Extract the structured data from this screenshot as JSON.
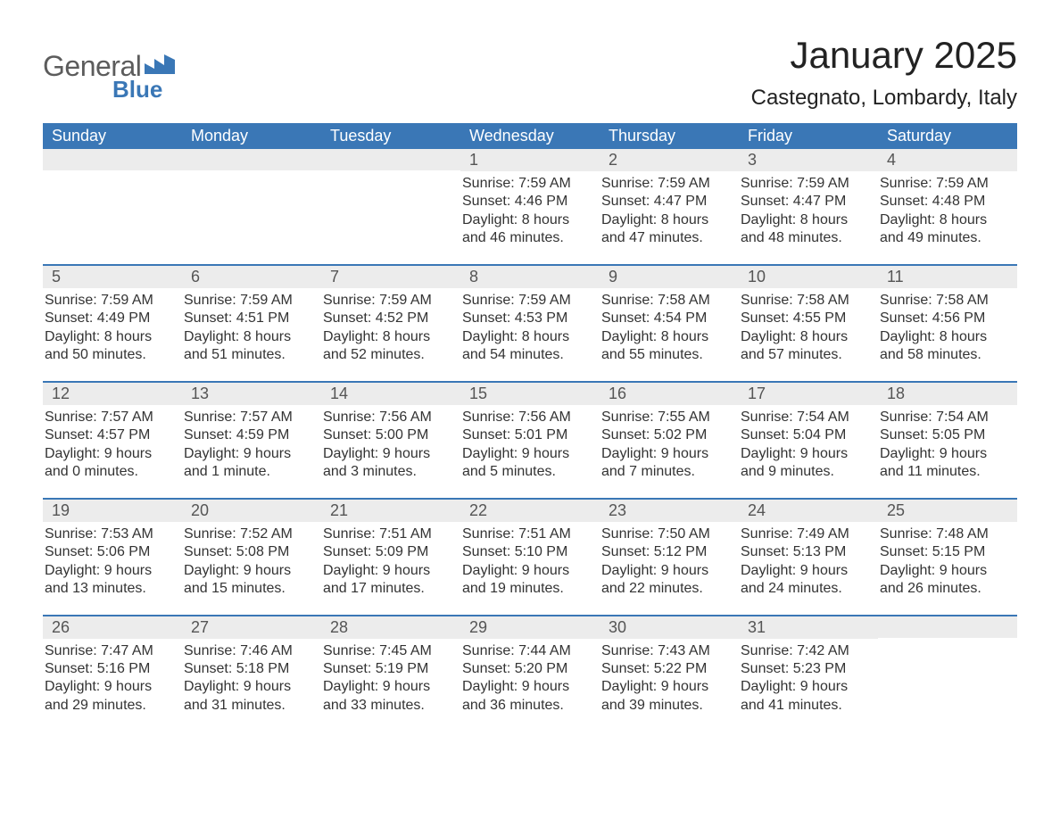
{
  "logo": {
    "text_general": "General",
    "text_blue": "Blue"
  },
  "title": "January 2025",
  "location": "Castegnato, Lombardy, Italy",
  "colors": {
    "brand_blue": "#3a77b6",
    "header_blue": "#3a77b6",
    "row_stripe": "#ececec",
    "text_dark": "#333333",
    "background": "#ffffff"
  },
  "weekdays": [
    "Sunday",
    "Monday",
    "Tuesday",
    "Wednesday",
    "Thursday",
    "Friday",
    "Saturday"
  ],
  "weeks": [
    [
      {
        "day": "",
        "sunrise": "",
        "sunset": "",
        "daylight1": "",
        "daylight2": ""
      },
      {
        "day": "",
        "sunrise": "",
        "sunset": "",
        "daylight1": "",
        "daylight2": ""
      },
      {
        "day": "",
        "sunrise": "",
        "sunset": "",
        "daylight1": "",
        "daylight2": ""
      },
      {
        "day": "1",
        "sunrise": "Sunrise: 7:59 AM",
        "sunset": "Sunset: 4:46 PM",
        "daylight1": "Daylight: 8 hours",
        "daylight2": "and 46 minutes."
      },
      {
        "day": "2",
        "sunrise": "Sunrise: 7:59 AM",
        "sunset": "Sunset: 4:47 PM",
        "daylight1": "Daylight: 8 hours",
        "daylight2": "and 47 minutes."
      },
      {
        "day": "3",
        "sunrise": "Sunrise: 7:59 AM",
        "sunset": "Sunset: 4:47 PM",
        "daylight1": "Daylight: 8 hours",
        "daylight2": "and 48 minutes."
      },
      {
        "day": "4",
        "sunrise": "Sunrise: 7:59 AM",
        "sunset": "Sunset: 4:48 PM",
        "daylight1": "Daylight: 8 hours",
        "daylight2": "and 49 minutes."
      }
    ],
    [
      {
        "day": "5",
        "sunrise": "Sunrise: 7:59 AM",
        "sunset": "Sunset: 4:49 PM",
        "daylight1": "Daylight: 8 hours",
        "daylight2": "and 50 minutes."
      },
      {
        "day": "6",
        "sunrise": "Sunrise: 7:59 AM",
        "sunset": "Sunset: 4:51 PM",
        "daylight1": "Daylight: 8 hours",
        "daylight2": "and 51 minutes."
      },
      {
        "day": "7",
        "sunrise": "Sunrise: 7:59 AM",
        "sunset": "Sunset: 4:52 PM",
        "daylight1": "Daylight: 8 hours",
        "daylight2": "and 52 minutes."
      },
      {
        "day": "8",
        "sunrise": "Sunrise: 7:59 AM",
        "sunset": "Sunset: 4:53 PM",
        "daylight1": "Daylight: 8 hours",
        "daylight2": "and 54 minutes."
      },
      {
        "day": "9",
        "sunrise": "Sunrise: 7:58 AM",
        "sunset": "Sunset: 4:54 PM",
        "daylight1": "Daylight: 8 hours",
        "daylight2": "and 55 minutes."
      },
      {
        "day": "10",
        "sunrise": "Sunrise: 7:58 AM",
        "sunset": "Sunset: 4:55 PM",
        "daylight1": "Daylight: 8 hours",
        "daylight2": "and 57 minutes."
      },
      {
        "day": "11",
        "sunrise": "Sunrise: 7:58 AM",
        "sunset": "Sunset: 4:56 PM",
        "daylight1": "Daylight: 8 hours",
        "daylight2": "and 58 minutes."
      }
    ],
    [
      {
        "day": "12",
        "sunrise": "Sunrise: 7:57 AM",
        "sunset": "Sunset: 4:57 PM",
        "daylight1": "Daylight: 9 hours",
        "daylight2": "and 0 minutes."
      },
      {
        "day": "13",
        "sunrise": "Sunrise: 7:57 AM",
        "sunset": "Sunset: 4:59 PM",
        "daylight1": "Daylight: 9 hours",
        "daylight2": "and 1 minute."
      },
      {
        "day": "14",
        "sunrise": "Sunrise: 7:56 AM",
        "sunset": "Sunset: 5:00 PM",
        "daylight1": "Daylight: 9 hours",
        "daylight2": "and 3 minutes."
      },
      {
        "day": "15",
        "sunrise": "Sunrise: 7:56 AM",
        "sunset": "Sunset: 5:01 PM",
        "daylight1": "Daylight: 9 hours",
        "daylight2": "and 5 minutes."
      },
      {
        "day": "16",
        "sunrise": "Sunrise: 7:55 AM",
        "sunset": "Sunset: 5:02 PM",
        "daylight1": "Daylight: 9 hours",
        "daylight2": "and 7 minutes."
      },
      {
        "day": "17",
        "sunrise": "Sunrise: 7:54 AM",
        "sunset": "Sunset: 5:04 PM",
        "daylight1": "Daylight: 9 hours",
        "daylight2": "and 9 minutes."
      },
      {
        "day": "18",
        "sunrise": "Sunrise: 7:54 AM",
        "sunset": "Sunset: 5:05 PM",
        "daylight1": "Daylight: 9 hours",
        "daylight2": "and 11 minutes."
      }
    ],
    [
      {
        "day": "19",
        "sunrise": "Sunrise: 7:53 AM",
        "sunset": "Sunset: 5:06 PM",
        "daylight1": "Daylight: 9 hours",
        "daylight2": "and 13 minutes."
      },
      {
        "day": "20",
        "sunrise": "Sunrise: 7:52 AM",
        "sunset": "Sunset: 5:08 PM",
        "daylight1": "Daylight: 9 hours",
        "daylight2": "and 15 minutes."
      },
      {
        "day": "21",
        "sunrise": "Sunrise: 7:51 AM",
        "sunset": "Sunset: 5:09 PM",
        "daylight1": "Daylight: 9 hours",
        "daylight2": "and 17 minutes."
      },
      {
        "day": "22",
        "sunrise": "Sunrise: 7:51 AM",
        "sunset": "Sunset: 5:10 PM",
        "daylight1": "Daylight: 9 hours",
        "daylight2": "and 19 minutes."
      },
      {
        "day": "23",
        "sunrise": "Sunrise: 7:50 AM",
        "sunset": "Sunset: 5:12 PM",
        "daylight1": "Daylight: 9 hours",
        "daylight2": "and 22 minutes."
      },
      {
        "day": "24",
        "sunrise": "Sunrise: 7:49 AM",
        "sunset": "Sunset: 5:13 PM",
        "daylight1": "Daylight: 9 hours",
        "daylight2": "and 24 minutes."
      },
      {
        "day": "25",
        "sunrise": "Sunrise: 7:48 AM",
        "sunset": "Sunset: 5:15 PM",
        "daylight1": "Daylight: 9 hours",
        "daylight2": "and 26 minutes."
      }
    ],
    [
      {
        "day": "26",
        "sunrise": "Sunrise: 7:47 AM",
        "sunset": "Sunset: 5:16 PM",
        "daylight1": "Daylight: 9 hours",
        "daylight2": "and 29 minutes."
      },
      {
        "day": "27",
        "sunrise": "Sunrise: 7:46 AM",
        "sunset": "Sunset: 5:18 PM",
        "daylight1": "Daylight: 9 hours",
        "daylight2": "and 31 minutes."
      },
      {
        "day": "28",
        "sunrise": "Sunrise: 7:45 AM",
        "sunset": "Sunset: 5:19 PM",
        "daylight1": "Daylight: 9 hours",
        "daylight2": "and 33 minutes."
      },
      {
        "day": "29",
        "sunrise": "Sunrise: 7:44 AM",
        "sunset": "Sunset: 5:20 PM",
        "daylight1": "Daylight: 9 hours",
        "daylight2": "and 36 minutes."
      },
      {
        "day": "30",
        "sunrise": "Sunrise: 7:43 AM",
        "sunset": "Sunset: 5:22 PM",
        "daylight1": "Daylight: 9 hours",
        "daylight2": "and 39 minutes."
      },
      {
        "day": "31",
        "sunrise": "Sunrise: 7:42 AM",
        "sunset": "Sunset: 5:23 PM",
        "daylight1": "Daylight: 9 hours",
        "daylight2": "and 41 minutes."
      },
      {
        "day": "",
        "sunrise": "",
        "sunset": "",
        "daylight1": "",
        "daylight2": ""
      }
    ]
  ]
}
